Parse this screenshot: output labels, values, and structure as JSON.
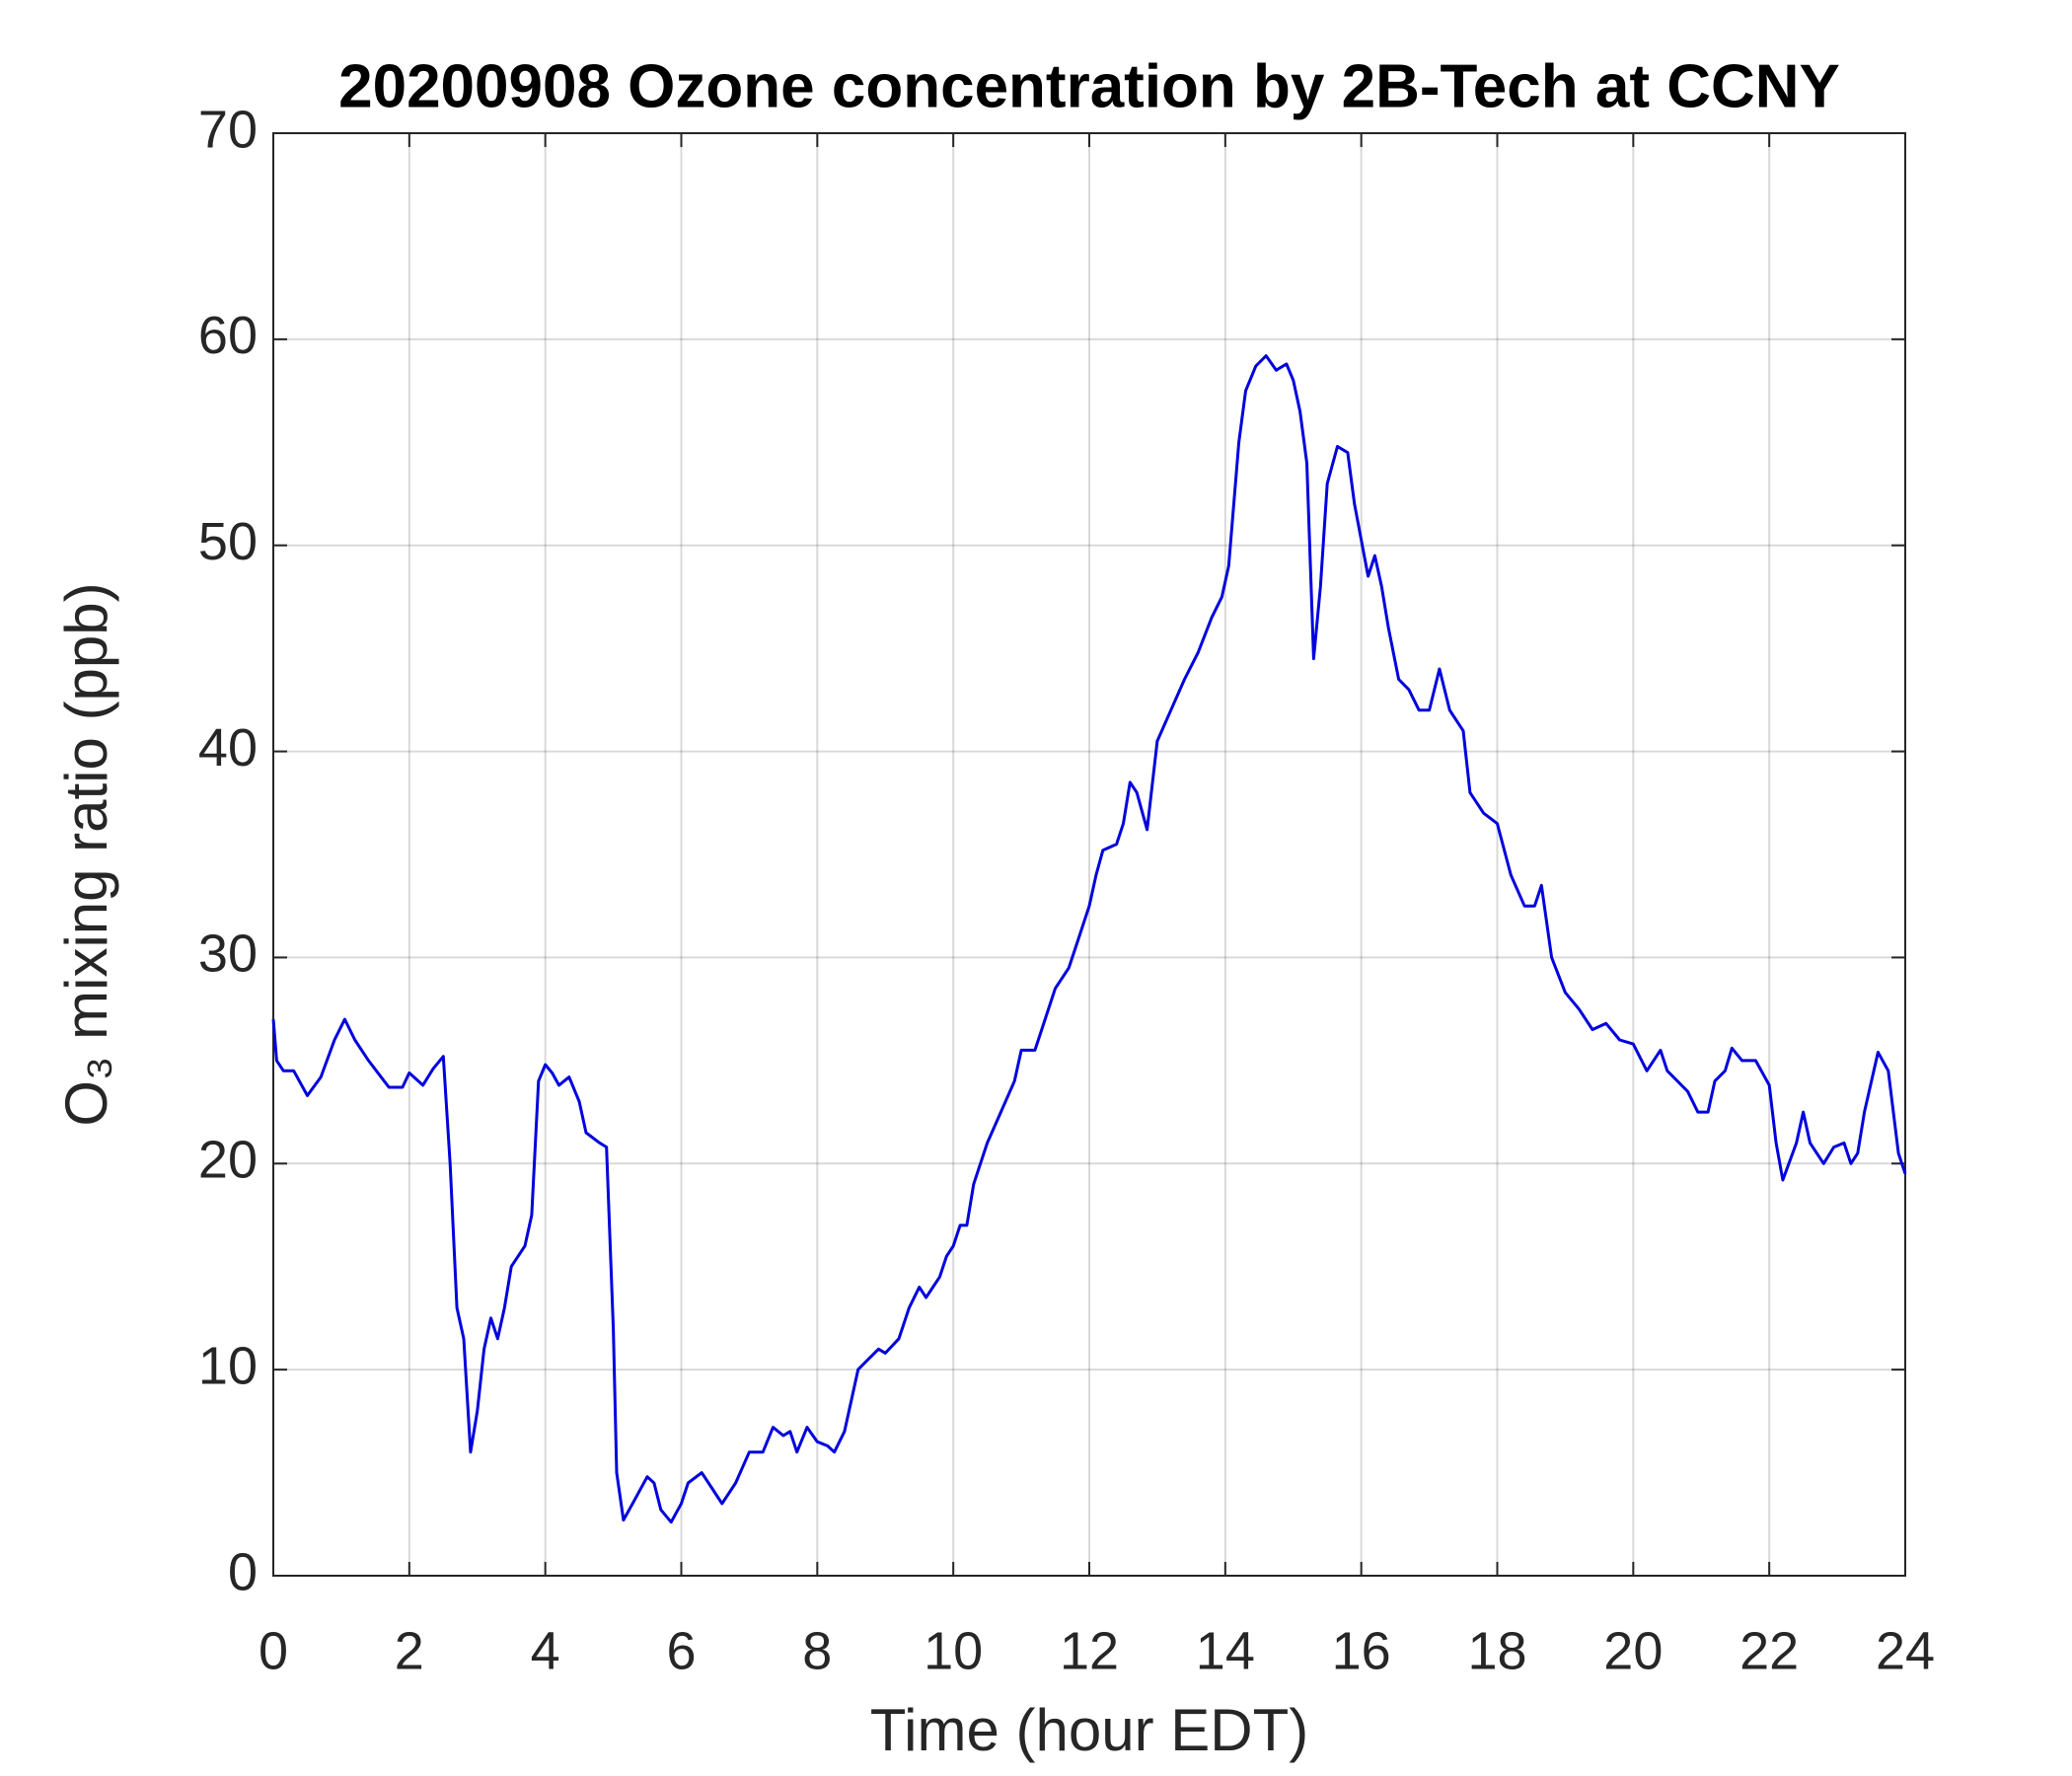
{
  "chart_data": {
    "type": "line",
    "title": "20200908 Ozone concentration by 2B-Tech at CCNY",
    "xlabel": "Time (hour EDT)",
    "ylabel": "O₃ mixing ratio (ppb)",
    "xlim": [
      0,
      24
    ],
    "ylim": [
      0,
      70
    ],
    "xticks": [
      0,
      2,
      4,
      6,
      8,
      10,
      12,
      14,
      16,
      18,
      20,
      22,
      24
    ],
    "yticks": [
      0,
      10,
      20,
      30,
      40,
      50,
      60,
      70
    ],
    "grid": true,
    "x": [
      0,
      0.05,
      0.15,
      0.3,
      0.5,
      0.7,
      0.9,
      1.05,
      1.2,
      1.4,
      1.7,
      1.9,
      2.0,
      2.2,
      2.35,
      2.5,
      2.6,
      2.7,
      2.8,
      2.9,
      3.0,
      3.1,
      3.2,
      3.3,
      3.4,
      3.5,
      3.7,
      3.8,
      3.9,
      4.0,
      4.1,
      4.2,
      4.35,
      4.5,
      4.6,
      4.8,
      4.9,
      5.0,
      5.05,
      5.15,
      5.3,
      5.5,
      5.6,
      5.7,
      5.85,
      6.0,
      6.1,
      6.3,
      6.5,
      6.6,
      6.8,
      7.0,
      7.2,
      7.35,
      7.5,
      7.6,
      7.7,
      7.85,
      8.0,
      8.15,
      8.25,
      8.4,
      8.6,
      8.75,
      8.9,
      9.0,
      9.2,
      9.35,
      9.5,
      9.6,
      9.8,
      9.9,
      10.0,
      10.1,
      10.2,
      10.3,
      10.5,
      10.7,
      10.9,
      11.0,
      11.2,
      11.3,
      11.5,
      11.7,
      11.85,
      12.0,
      12.1,
      12.2,
      12.4,
      12.5,
      12.6,
      12.7,
      12.85,
      13.0,
      13.2,
      13.4,
      13.6,
      13.8,
      13.95,
      14.05,
      14.2,
      14.3,
      14.45,
      14.6,
      14.75,
      14.9,
      15.0,
      15.1,
      15.2,
      15.3,
      15.4,
      15.5,
      15.65,
      15.8,
      15.9,
      16.1,
      16.2,
      16.3,
      16.4,
      16.55,
      16.7,
      16.85,
      17.0,
      17.15,
      17.3,
      17.5,
      17.6,
      17.8,
      18.0,
      18.2,
      18.4,
      18.55,
      18.65,
      18.8,
      19.0,
      19.2,
      19.4,
      19.6,
      19.8,
      20.0,
      20.2,
      20.4,
      20.5,
      20.8,
      20.95,
      21.1,
      21.2,
      21.35,
      21.45,
      21.6,
      21.8,
      22.0,
      22.1,
      22.2,
      22.4,
      22.5,
      22.6,
      22.8,
      22.95,
      23.1,
      23.2,
      23.3,
      23.4,
      23.6,
      23.75,
      23.9,
      24.0
    ],
    "series": [
      {
        "color": "#0000dd",
        "values": [
          27,
          25,
          24.5,
          24.5,
          23.3,
          24.2,
          26,
          27,
          26,
          25,
          23.7,
          23.7,
          24.4,
          23.8,
          24.6,
          25.2,
          20,
          13,
          11.5,
          6,
          8,
          11,
          12.5,
          11.5,
          13,
          15,
          16,
          17.5,
          24,
          24.8,
          24.4,
          23.8,
          24.2,
          23,
          21.5,
          21,
          20.8,
          12,
          5,
          2.7,
          3.6,
          4.8,
          4.5,
          3.2,
          2.6,
          3.5,
          4.5,
          5,
          4,
          3.5,
          4.5,
          6,
          6,
          7.2,
          6.8,
          7,
          6,
          7.2,
          6.5,
          6.3,
          6,
          7,
          10,
          10.5,
          11,
          10.8,
          11.5,
          13,
          14,
          13.5,
          14.5,
          15.5,
          16,
          17,
          17,
          19,
          21,
          22.5,
          24,
          25.5,
          25.5,
          26.5,
          28.5,
          29.5,
          31,
          32.5,
          34,
          35.2,
          35.5,
          36.5,
          38.5,
          38,
          36.2,
          40.5,
          42,
          43.5,
          44.8,
          46.5,
          47.5,
          49,
          55,
          57.5,
          58.7,
          59.2,
          58.5,
          58.8,
          58,
          56.5,
          54,
          44.5,
          48,
          53,
          54.8,
          54.5,
          52,
          48.5,
          49.5,
          48,
          46,
          43.5,
          43,
          42,
          42,
          44,
          42,
          41,
          38,
          37,
          36.5,
          34,
          32.5,
          32.5,
          33.5,
          30,
          28.3,
          27.5,
          26.5,
          26.8,
          26,
          25.8,
          24.5,
          25.5,
          24.5,
          23.5,
          22.5,
          22.5,
          24,
          24.5,
          25.6,
          25,
          25,
          23.8,
          21,
          19.2,
          21,
          22.5,
          21,
          20,
          20.8,
          21,
          20,
          20.5,
          22.5,
          25.4,
          24.5,
          20.5,
          19.5
        ]
      }
    ]
  }
}
